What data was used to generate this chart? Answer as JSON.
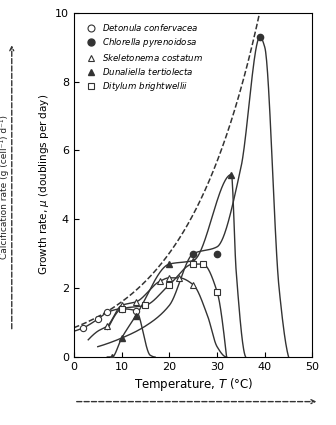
{
  "xlabel": "Temperature, T (°C)",
  "ylabel_main": "Growth rate, μ (doublings per day)",
  "ylabel_calc": "Calcification rate (g (cell⁻¹) d⁻¹)",
  "xlim": [
    0,
    50
  ],
  "ylim": [
    0,
    10
  ],
  "yticks": [
    0,
    2,
    4,
    6,
    8,
    10
  ],
  "xticks": [
    0,
    10,
    20,
    30,
    40,
    50
  ],
  "species": [
    {
      "name": "Detonula confervacea",
      "marker": "o",
      "filled": false,
      "curve_pts_T": [
        0,
        2,
        5,
        7,
        10,
        13,
        16,
        17
      ],
      "curve_pts_mu": [
        0.75,
        0.85,
        1.1,
        1.3,
        1.4,
        1.35,
        0.05,
        0.0
      ],
      "data_T": [
        2,
        5,
        7,
        10,
        13
      ],
      "data_mu": [
        0.85,
        1.1,
        1.3,
        1.4,
        1.35
      ]
    },
    {
      "name": "Chlorella pyrenoidosa",
      "marker": "o",
      "filled": true,
      "curve_pts_T": [
        5,
        10,
        15,
        20,
        25,
        30,
        35,
        39,
        40,
        43,
        45
      ],
      "curve_pts_mu": [
        0.3,
        0.55,
        0.9,
        1.5,
        3.0,
        3.2,
        5.5,
        9.3,
        9.0,
        2.0,
        0.0
      ],
      "data_T": [
        25,
        30,
        39
      ],
      "data_mu": [
        3.0,
        3.0,
        9.3
      ]
    },
    {
      "name": "Skeletonema costatum",
      "marker": "^",
      "filled": false,
      "curve_pts_T": [
        3,
        5,
        7,
        10,
        13,
        18,
        20,
        22,
        25,
        28,
        30,
        32
      ],
      "curve_pts_mu": [
        0.5,
        0.75,
        0.9,
        1.5,
        1.6,
        2.2,
        2.3,
        2.3,
        2.1,
        1.2,
        0.3,
        0.0
      ],
      "data_T": [
        7,
        10,
        13,
        18,
        20,
        22,
        25
      ],
      "data_mu": [
        0.9,
        1.5,
        1.6,
        2.2,
        2.3,
        2.3,
        2.1
      ]
    },
    {
      "name": "Dunaliella tertiolecta",
      "marker": "^",
      "filled": true,
      "curve_pts_T": [
        7,
        8,
        10,
        13,
        20,
        25,
        33,
        34,
        36
      ],
      "curve_pts_mu": [
        0.0,
        0.0,
        0.55,
        1.2,
        2.7,
        2.8,
        5.3,
        2.5,
        0.0
      ],
      "data_T": [
        8,
        10,
        13,
        20,
        25,
        33
      ],
      "data_mu": [
        0.0,
        0.55,
        1.2,
        2.7,
        2.8,
        5.3
      ]
    },
    {
      "name": "Ditylum brightwellii",
      "marker": "s",
      "filled": false,
      "curve_pts_T": [
        7,
        10,
        15,
        20,
        25,
        27,
        30,
        32
      ],
      "curve_pts_mu": [
        0.8,
        1.4,
        1.5,
        2.1,
        2.7,
        2.7,
        1.9,
        0.0
      ],
      "data_T": [
        10,
        15,
        20,
        25,
        27,
        30
      ],
      "data_mu": [
        1.4,
        1.5,
        2.1,
        2.7,
        2.7,
        1.9
      ]
    }
  ],
  "eppley_base": 0.851,
  "eppley_rate": 0.0633,
  "ec_color": "#333333",
  "bg_color": "#ffffff"
}
